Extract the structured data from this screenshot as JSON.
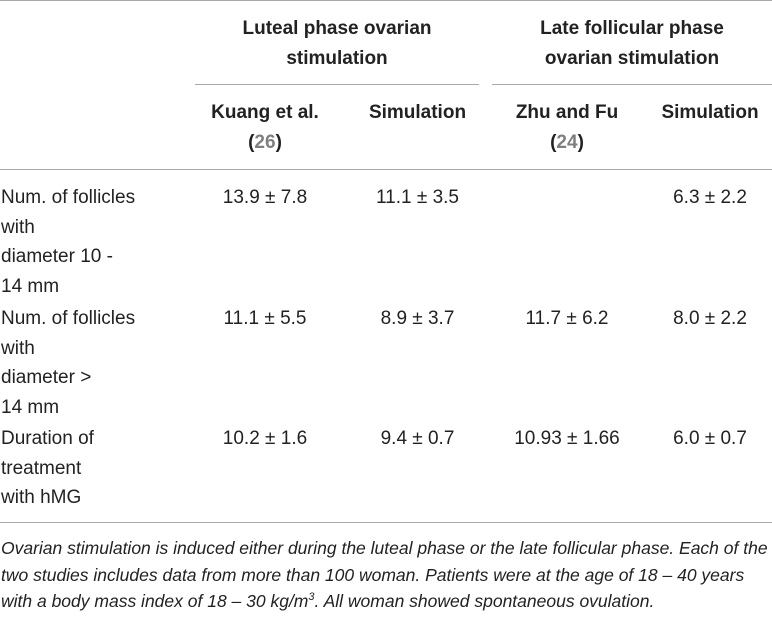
{
  "table": {
    "group_headers": [
      {
        "line1": "Luteal phase ovarian",
        "line2": "stimulation"
      },
      {
        "line1": "Late follicular phase",
        "line2": "ovarian stimulation"
      }
    ],
    "sub_headers": [
      {
        "name": "Kuang et al.",
        "ref_open": "(",
        "ref": "26",
        "ref_close": ")"
      },
      {
        "name": "Simulation"
      },
      {
        "name": "Zhu and Fu",
        "ref_open": "(",
        "ref": "24",
        "ref_close": ")"
      },
      {
        "name": "Simulation"
      }
    ],
    "rows": [
      {
        "label": "Num. of follicles\nwith\ndiameter 10 -\n14 mm",
        "values": [
          "13.9 ± 7.8",
          "11.1 ± 3.5",
          "",
          "6.3 ± 2.2"
        ]
      },
      {
        "label": "Num. of follicles\nwith\ndiameter >\n14 mm",
        "values": [
          "11.1 ± 5.5",
          "8.9 ± 3.7",
          "11.7 ± 6.2",
          "8.0 ± 2.2"
        ]
      },
      {
        "label": "Duration of\ntreatment\nwith hMG",
        "values": [
          "10.2 ± 1.6",
          "9.4 ± 0.7",
          "10.93 ± 1.66",
          "6.0 ± 0.7"
        ]
      }
    ]
  },
  "footnote": {
    "text_before_sup": "Ovarian stimulation is induced either during the luteal phase or the late follicular phase. Each of the two studies includes data from more than 100 woman. Patients were at the age of 18 – 40 years with a body mass index of 18 – 30 kg/m",
    "sup": "3",
    "text_after_sup": ". All woman showed spontaneous ovulation."
  }
}
